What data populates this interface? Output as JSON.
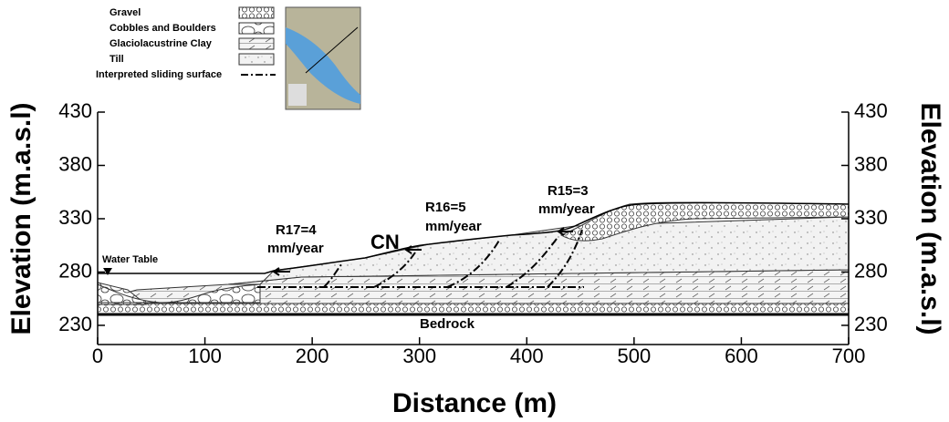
{
  "legend": {
    "items": [
      "Gravel",
      "Cobbles and Boulders",
      "Glaciolacustrine Clay",
      "Till",
      "Interpreted sliding surface"
    ]
  },
  "axes": {
    "x_label": "Distance (m)",
    "y_label": "Elevation (m.a.s.l)",
    "y2_label": "Elevation (m.a.s.l)",
    "xlim": [
      0,
      700
    ],
    "ylim": [
      212,
      430
    ],
    "xticks": [
      0,
      100,
      200,
      300,
      400,
      500,
      600,
      700
    ],
    "yticks": [
      230,
      280,
      330,
      380,
      430
    ]
  },
  "annotations": {
    "water_table": "Water Table",
    "r17": [
      "R17=4",
      "mm/year"
    ],
    "cn": "CN",
    "r16": [
      "R16=5",
      "mm/year"
    ],
    "r15": [
      "R15=3",
      "mm/year"
    ],
    "bedrock": "Bedrock"
  }
}
